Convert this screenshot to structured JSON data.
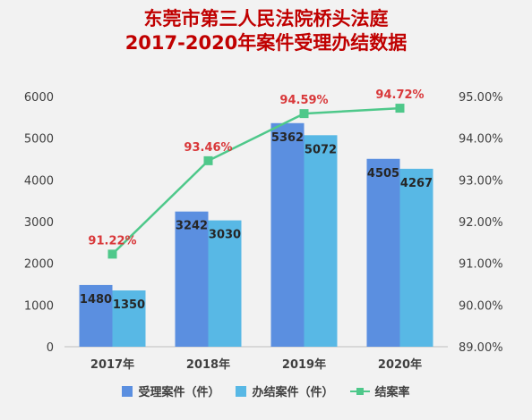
{
  "title_line1": "东莞市第三人民法院桥头法庭",
  "title_line2": "2017-2020年案件受理办结数据",
  "colors": {
    "accepted": "#5b8fe0",
    "closed": "#58b8e5",
    "rate": "#4ec88a",
    "rate_label": "#d9383a",
    "title": "#c00000"
  },
  "chart_data": {
    "type": "bar",
    "categories": [
      "2017年",
      "2018年",
      "2019年",
      "2020年"
    ],
    "series": [
      {
        "name": "受理案件（件）",
        "type": "bar",
        "axis": "left",
        "values": [
          1480,
          3242,
          5362,
          4505
        ],
        "labels": [
          "1480",
          "3242",
          "5362",
          "4505"
        ]
      },
      {
        "name": "办结案件（件）",
        "type": "bar",
        "axis": "left",
        "values": [
          1350,
          3030,
          5072,
          4267
        ],
        "labels": [
          "1350",
          "3030",
          "5072",
          "4267"
        ]
      },
      {
        "name": "结案率",
        "type": "line",
        "axis": "right",
        "values": [
          91.22,
          93.46,
          94.59,
          94.72
        ],
        "labels": [
          "91.22%",
          "93.46%",
          "94.59%",
          "94.72%"
        ]
      }
    ],
    "y_left": {
      "min": 0,
      "max": 6000,
      "ticks": [
        "0",
        "1000",
        "2000",
        "3000",
        "4000",
        "5000",
        "6000"
      ]
    },
    "y_right": {
      "min": 89,
      "max": 95,
      "ticks": [
        "89.00%",
        "90.00%",
        "91.00%",
        "92.00%",
        "93.00%",
        "94.00%",
        "95.00%"
      ]
    },
    "grid": false,
    "legend": "bottom"
  }
}
